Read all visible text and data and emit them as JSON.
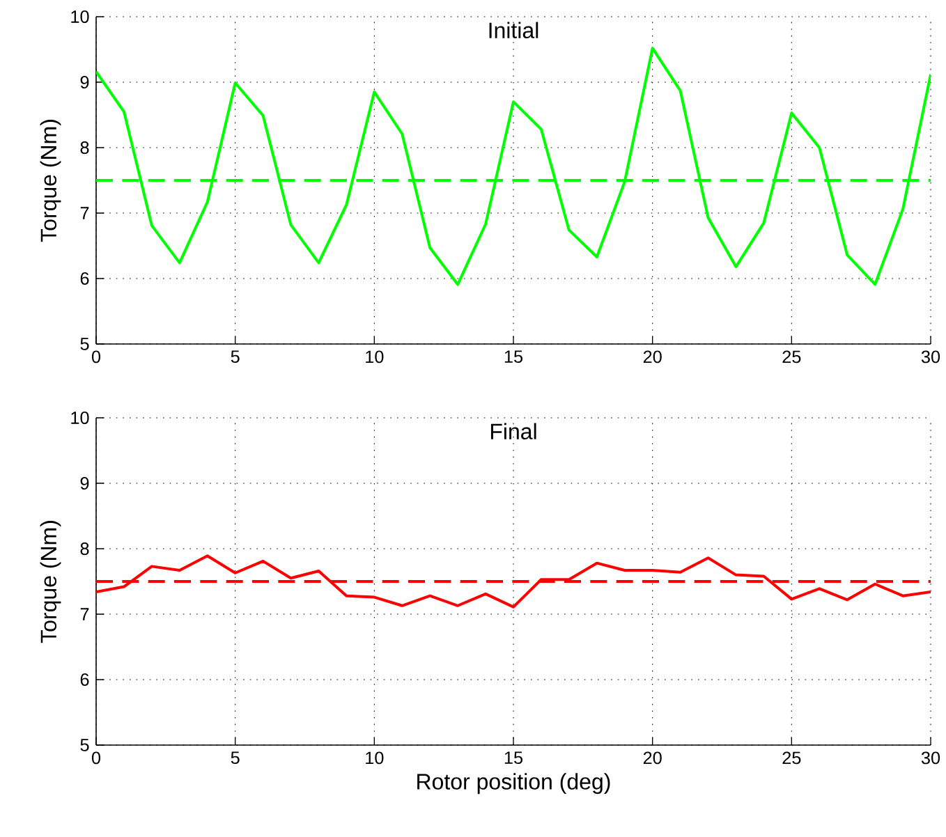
{
  "chart_data": [
    {
      "type": "line",
      "title": "Initial",
      "ylabel": "Torque (Nm)",
      "x": [
        0,
        1,
        2,
        3,
        4,
        5,
        6,
        7,
        8,
        9,
        10,
        11,
        12,
        13,
        14,
        15,
        16,
        17,
        18,
        19,
        20,
        21,
        22,
        23,
        24,
        25,
        26,
        27,
        28,
        29,
        30
      ],
      "series": [
        {
          "color": "#00ff00",
          "values": [
            9.16,
            8.55,
            6.81,
            6.24,
            7.17,
            8.99,
            8.49,
            6.82,
            6.24,
            7.13,
            8.85,
            8.21,
            6.47,
            5.91,
            6.83,
            8.7,
            8.28,
            6.74,
            6.33,
            7.48,
            9.52,
            8.87,
            6.93,
            6.18,
            6.85,
            8.53,
            8.0,
            6.36,
            5.91,
            7.06,
            9.12
          ]
        }
      ],
      "ref_lines": [
        {
          "axis": "y",
          "value": 7.5,
          "color": "#00ff00",
          "line_style": "dashed"
        }
      ],
      "xlim": [
        0,
        30
      ],
      "ylim": [
        5,
        10
      ],
      "xticks": [
        0,
        5,
        10,
        15,
        20,
        25,
        30
      ],
      "yticks": [
        5,
        6,
        7,
        8,
        9,
        10
      ],
      "grid": true,
      "line_style": "solid",
      "marker": "none"
    },
    {
      "type": "line",
      "title": "Final",
      "xlabel": "Rotor position (deg)",
      "ylabel": "Torque (Nm)",
      "x": [
        0,
        1,
        2,
        3,
        4,
        5,
        6,
        7,
        8,
        9,
        10,
        11,
        12,
        13,
        14,
        15,
        16,
        17,
        18,
        19,
        20,
        21,
        22,
        23,
        24,
        25,
        26,
        27,
        28,
        29,
        30
      ],
      "series": [
        {
          "color": "#ff0000",
          "values": [
            7.34,
            7.42,
            7.73,
            7.67,
            7.89,
            7.63,
            7.81,
            7.55,
            7.66,
            7.28,
            7.26,
            7.13,
            7.28,
            7.13,
            7.31,
            7.11,
            7.53,
            7.53,
            7.78,
            7.67,
            7.67,
            7.64,
            7.86,
            7.6,
            7.58,
            7.23,
            7.39,
            7.22,
            7.46,
            7.28,
            7.34
          ]
        }
      ],
      "ref_lines": [
        {
          "axis": "y",
          "value": 7.5,
          "color": "#ff0000",
          "line_style": "dashed"
        }
      ],
      "xlim": [
        0,
        30
      ],
      "ylim": [
        5,
        10
      ],
      "xticks": [
        0,
        5,
        10,
        15,
        20,
        25,
        30
      ],
      "yticks": [
        5,
        6,
        7,
        8,
        9,
        10
      ],
      "grid": true,
      "line_style": "solid",
      "marker": "none"
    }
  ]
}
